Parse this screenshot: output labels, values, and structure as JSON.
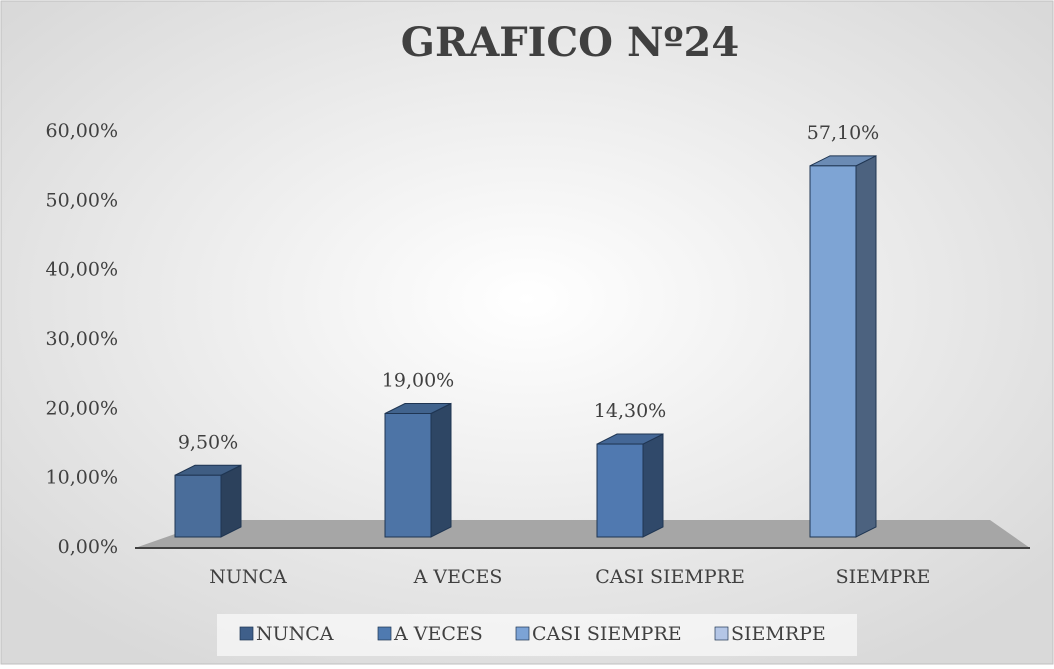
{
  "chart_data": {
    "type": "bar3d",
    "title": "GRAFICO Nº24",
    "categories": [
      "NUNCA",
      "A VECES",
      "CASI SIEMPRE",
      "SIEMPRE"
    ],
    "values": [
      9.5,
      19,
      14.3,
      57.1
    ],
    "value_labels": [
      "9,50%",
      "19,00%",
      "14,30%",
      "57,10%"
    ],
    "colors": [
      "#4a6d9a",
      "#4d74a6",
      "#5079b0",
      "#7ea4d4"
    ],
    "ylim": [
      0,
      60
    ],
    "yticks": [
      {
        "value": 0,
        "label": "0,00%"
      },
      {
        "value": 10,
        "label": "10,00%"
      },
      {
        "value": 20,
        "label": "20,00%"
      },
      {
        "value": 30,
        "label": "30,00%"
      },
      {
        "value": 40,
        "label": "40,00%"
      },
      {
        "value": 50,
        "label": "50,00%"
      },
      {
        "value": 60,
        "label": "60,00%"
      }
    ],
    "legend": [
      {
        "name": "NUNCA",
        "color": "#3f5f8a"
      },
      {
        "name": "A VECES",
        "color": "#4f7ab0"
      },
      {
        "name": "CASI SIEMPRE",
        "color": "#7ca3d6"
      },
      {
        "name": "SIEMRPE",
        "color": "#b4c6e6"
      }
    ]
  }
}
